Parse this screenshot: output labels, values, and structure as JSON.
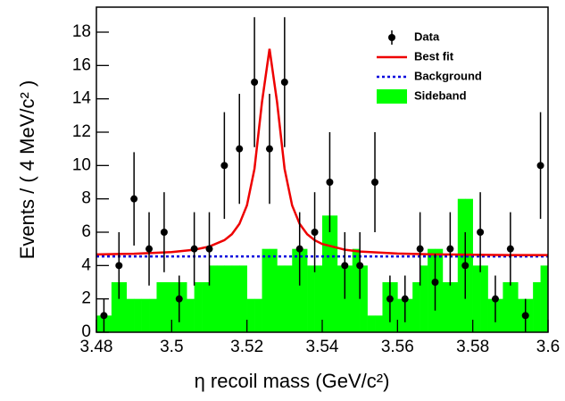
{
  "chart_data": {
    "type": "histogram",
    "x_label": "η recoil mass (GeV/c²)",
    "y_label": "Events / ( 4 MeV/c² )",
    "xlim": [
      3.48,
      3.6
    ],
    "ylim": [
      0,
      19.5
    ],
    "xticks": [
      3.48,
      3.5,
      3.52,
      3.54,
      3.56,
      3.58,
      3.6
    ],
    "yticks": [
      0,
      2,
      4,
      6,
      8,
      10,
      12,
      14,
      16,
      18
    ],
    "legend": "upper right",
    "series": [
      {
        "name": "Sideband",
        "type": "histogram",
        "color": "#00ff00",
        "bins": [
          3.48,
          3.482,
          3.484,
          3.486,
          3.488,
          3.49,
          3.492,
          3.494,
          3.496,
          3.498,
          3.5,
          3.502,
          3.504,
          3.506,
          3.508,
          3.51,
          3.512,
          3.514,
          3.516,
          3.518,
          3.52,
          3.522,
          3.524,
          3.526,
          3.528,
          3.53,
          3.532,
          3.534,
          3.536,
          3.538,
          3.54,
          3.542,
          3.544,
          3.546,
          3.548,
          3.55,
          3.552,
          3.554,
          3.556,
          3.558,
          3.56,
          3.562,
          3.564,
          3.566,
          3.568,
          3.57,
          3.572,
          3.574,
          3.576,
          3.578,
          3.58,
          3.582,
          3.584,
          3.586,
          3.588,
          3.59,
          3.592,
          3.594,
          3.596,
          3.598,
          3.6
        ],
        "values": [
          1,
          1,
          3,
          3,
          2,
          2,
          2,
          2,
          3,
          3,
          3,
          3,
          2,
          3,
          3,
          4,
          4,
          4,
          4,
          4,
          2,
          2,
          5,
          5,
          4,
          4,
          5,
          5,
          4,
          4,
          7,
          7,
          4,
          4,
          5,
          4,
          1,
          1,
          3,
          3,
          2,
          2,
          3,
          4,
          5,
          5,
          3,
          3,
          8,
          8,
          4,
          4,
          2,
          2,
          3,
          3,
          2,
          2,
          3,
          4
        ]
      },
      {
        "name": "Background",
        "type": "line",
        "style": "dotted",
        "color": "#0000dd",
        "x": [
          3.48,
          3.6
        ],
        "values": [
          4.55,
          4.55
        ]
      },
      {
        "name": "Best fit",
        "type": "line",
        "style": "solid",
        "color": "#ee0000",
        "x": [
          3.48,
          3.49,
          3.5,
          3.506,
          3.51,
          3.514,
          3.516,
          3.518,
          3.52,
          3.522,
          3.524,
          3.526,
          3.528,
          3.53,
          3.532,
          3.534,
          3.536,
          3.538,
          3.54,
          3.546,
          3.55,
          3.56,
          3.57,
          3.58,
          3.59,
          3.6
        ],
        "values": [
          4.67,
          4.71,
          4.81,
          4.95,
          5.14,
          5.52,
          5.88,
          6.5,
          7.61,
          9.8,
          13.81,
          17.0,
          13.81,
          9.8,
          7.61,
          6.5,
          5.88,
          5.52,
          5.29,
          4.95,
          4.84,
          4.72,
          4.67,
          4.65,
          4.63,
          4.63
        ]
      },
      {
        "name": "Data",
        "type": "errorbar",
        "color": "#000000",
        "x": [
          3.482,
          3.486,
          3.49,
          3.494,
          3.498,
          3.502,
          3.506,
          3.51,
          3.514,
          3.518,
          3.522,
          3.526,
          3.53,
          3.534,
          3.538,
          3.542,
          3.546,
          3.55,
          3.554,
          3.558,
          3.562,
          3.566,
          3.57,
          3.574,
          3.578,
          3.582,
          3.586,
          3.59,
          3.594,
          3.598
        ],
        "values": [
          1,
          4,
          8,
          5,
          6,
          2,
          5,
          5,
          10,
          11,
          15,
          11,
          15,
          5,
          6,
          9,
          4,
          4,
          9,
          2,
          2,
          5,
          3,
          5,
          4,
          6,
          2,
          5,
          1,
          10
        ],
        "errors": [
          1,
          2,
          2.8,
          2.2,
          2.4,
          1.4,
          2.2,
          2.2,
          3.2,
          3.3,
          3.9,
          3.3,
          3.9,
          2.2,
          2.4,
          3,
          2,
          2,
          3,
          1.4,
          1.4,
          2.2,
          1.7,
          2.2,
          2,
          2.4,
          1.4,
          2.2,
          1,
          3.2
        ]
      }
    ]
  }
}
